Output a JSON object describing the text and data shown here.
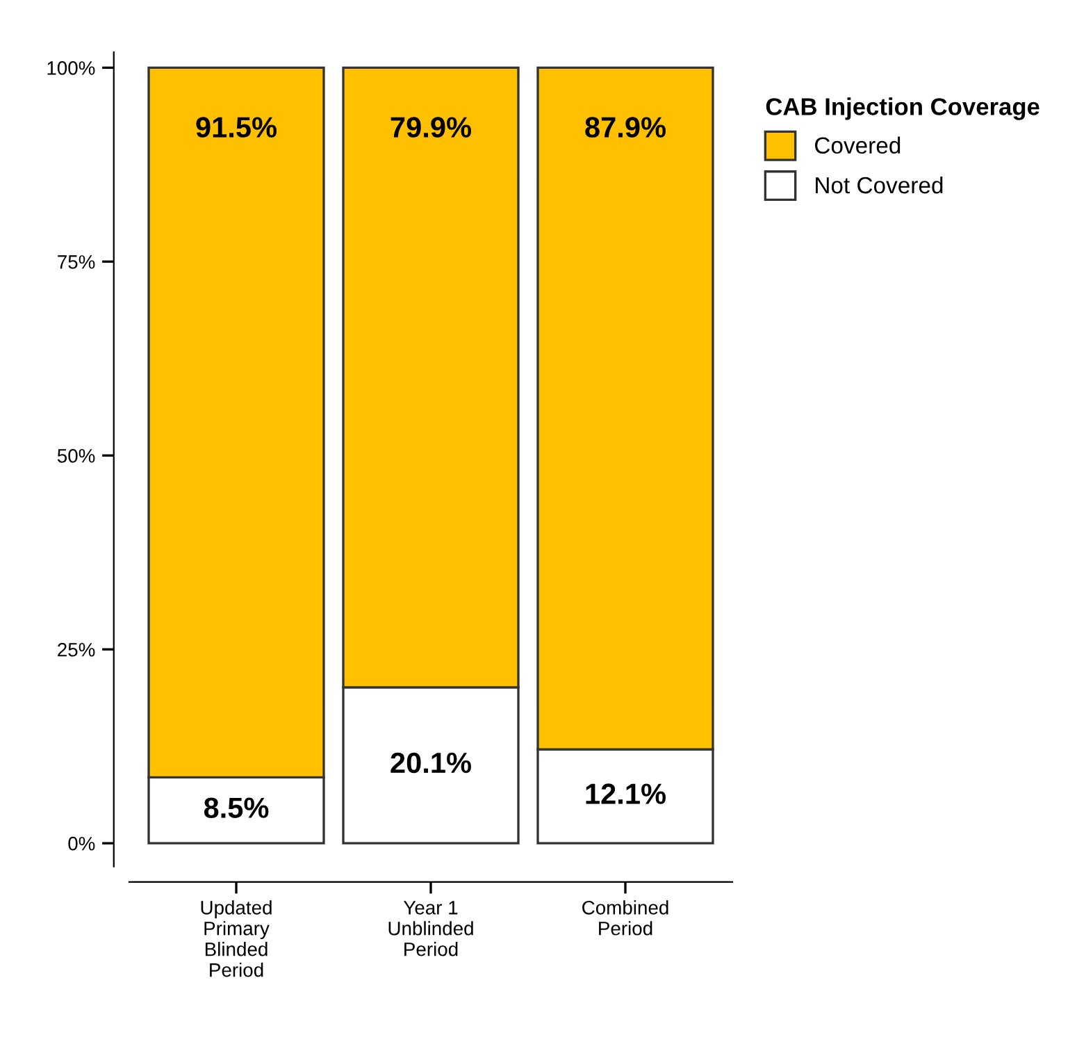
{
  "chart_data": {
    "type": "bar",
    "stacked": true,
    "categories": [
      "Updated\nPrimary\nBlinded\nPeriod",
      "Year 1\nUnblinded\nPeriod",
      "Combined\nPeriod"
    ],
    "series": [
      {
        "name": "Not Covered",
        "color": "#ffffff",
        "values": [
          8.5,
          20.1,
          12.1
        ],
        "value_labels": [
          "8.5%",
          "20.1%",
          "12.1%"
        ]
      },
      {
        "name": "Covered",
        "color": "#ffc000",
        "values": [
          91.5,
          79.9,
          87.9
        ],
        "value_labels": [
          "91.5%",
          "79.9%",
          "87.9%"
        ]
      }
    ],
    "ylim": [
      -3,
      102
    ],
    "yticks": [
      {
        "value": 0,
        "label": "0%"
      },
      {
        "value": 25,
        "label": "25%"
      },
      {
        "value": 50,
        "label": "50%"
      },
      {
        "value": 75,
        "label": "75%"
      },
      {
        "value": 100,
        "label": "100%"
      }
    ],
    "legend": "top right",
    "legend_title": "CAB Injection Coverage",
    "grid": false
  }
}
